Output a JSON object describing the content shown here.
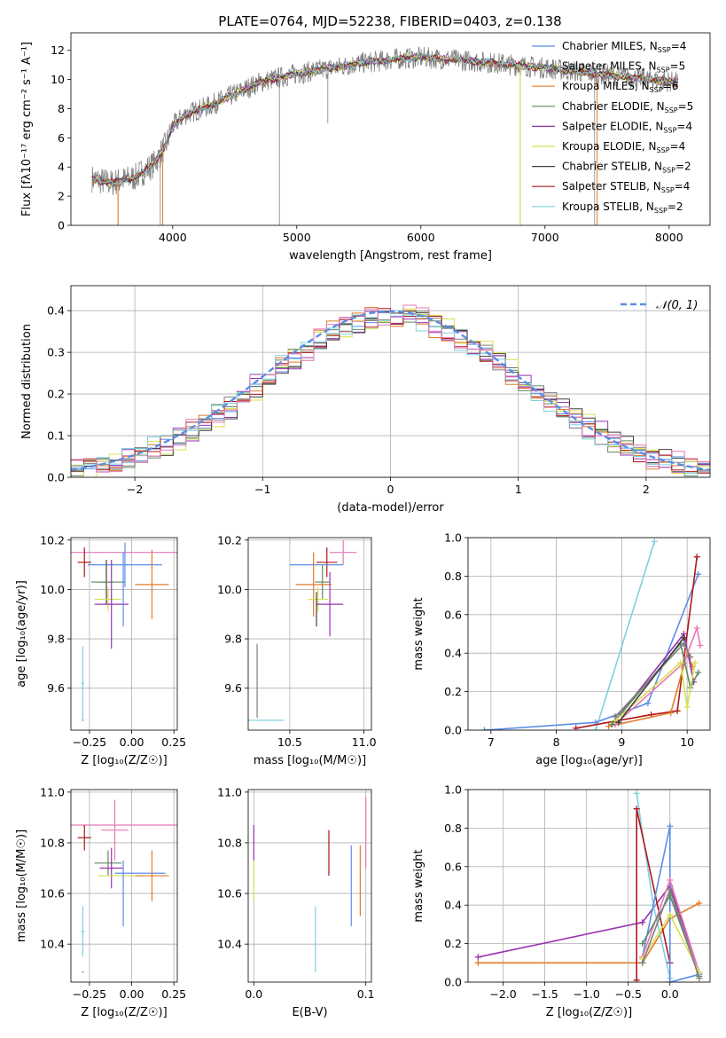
{
  "figure": {
    "title": "PLATE=0764, MJD=52238, FIBERID=0403, z=0.138"
  },
  "chart_data": [
    {
      "id": "spectrum",
      "type": "line",
      "xlabel": "wavelength [Angstrom, rest frame]",
      "ylabel": "Flux [fλ10⁻¹⁷ erg cm⁻² s⁻¹ A⁻¹]",
      "xlim": [
        3180,
        8330
      ],
      "ylim": [
        0,
        13.2
      ],
      "xticks": [
        4000,
        5000,
        6000,
        7000,
        8000
      ],
      "yticks": [
        0,
        2,
        4,
        6,
        8,
        10,
        12
      ],
      "grid": false,
      "legend_position": "right",
      "legend": [
        {
          "name": "Chabrier MILES, N",
          "sub": "SSP",
          "suffix": "=4",
          "color": "#5b8ee6"
        },
        {
          "name": "Salpeter MILES, N",
          "sub": "SSP",
          "suffix": "=5",
          "color": "#7f7f7f"
        },
        {
          "name": "Kroupa MILES, N",
          "sub": "SSP",
          "suffix": "=6",
          "color": "#e07b2a"
        },
        {
          "name": "Chabrier ELODIE, N",
          "sub": "SSP",
          "suffix": "=5",
          "color": "#5f8a5f"
        },
        {
          "name": "Salpeter ELODIE, N",
          "sub": "SSP",
          "suffix": "=4",
          "color": "#9a32b0"
        },
        {
          "name": "Kroupa ELODIE, N",
          "sub": "SSP",
          "suffix": "=4",
          "color": "#d6e050"
        },
        {
          "name": "Chabrier STELIB, N",
          "sub": "SSP",
          "suffix": "=2",
          "color": "#404040"
        },
        {
          "name": "Salpeter STELIB, N",
          "sub": "SSP",
          "suffix": "=4",
          "color": "#b01818"
        },
        {
          "name": "Kroupa STELIB, N",
          "sub": "SSP",
          "suffix": "=2",
          "color": "#7fd0e0"
        }
      ],
      "continuum": {
        "x": [
          3350,
          3500,
          3700,
          3850,
          3950,
          4000,
          4100,
          4300,
          4500,
          4700,
          5000,
          5300,
          5500,
          5800,
          6000,
          6200,
          6500,
          7000,
          7500,
          8070
        ],
        "y": [
          3.2,
          2.9,
          3.3,
          4.2,
          5.6,
          6.8,
          7.6,
          8.2,
          9.0,
          9.8,
          10.4,
          10.8,
          11.1,
          11.4,
          11.5,
          11.4,
          11.2,
          10.8,
          10.3,
          9.8
        ]
      },
      "data_noise": 0.75,
      "data_spikes": [
        {
          "x": 3560,
          "y": 0
        },
        {
          "x": 3900,
          "y": 0
        },
        {
          "x": 4860,
          "y": 0
        },
        {
          "x": 6800,
          "y": 0
        },
        {
          "x": 7400,
          "y": 0
        },
        {
          "x": 5250,
          "y": 7.0
        }
      ]
    },
    {
      "id": "residuals",
      "type": "histogram",
      "xlabel": "(data-model)/error",
      "ylabel": "Normed distribution",
      "xlim": [
        -2.5,
        2.5
      ],
      "ylim": [
        0,
        0.46
      ],
      "xticks": [
        -2,
        -1,
        0,
        1,
        2
      ],
      "yticks": [
        0.0,
        0.1,
        0.2,
        0.3,
        0.4
      ],
      "grid": true,
      "legend_position": "top-right",
      "legend_label": "𝒩(0, 1)",
      "gaussian_color": "#5b8ee6",
      "bin_width": 0.1,
      "series_colors": [
        "#5b8ee6",
        "#7f7f7f",
        "#e07b2a",
        "#5f8a5f",
        "#9a32b0",
        "#d6e050",
        "#404040",
        "#b01818",
        "#7fd0e0",
        "#e878b8"
      ],
      "series_noise": [
        0.01,
        0.014,
        0.016,
        0.015,
        0.018,
        0.017,
        0.014,
        0.016,
        0.015,
        0.02
      ],
      "series_shift": [
        0.1,
        0.05,
        -0.05,
        0.0,
        0.08,
        0.12,
        0.15,
        0.0,
        -0.05,
        0.05
      ]
    },
    {
      "id": "age-vs-Z",
      "type": "errorbar",
      "xlabel": "Z [log₁₀(Z/Z☉)]",
      "ylabel": "age  [log₁₀(age/yr)]",
      "xlim": [
        -0.36,
        0.27
      ],
      "ylim": [
        9.43,
        10.21
      ],
      "xticks": [
        -0.25,
        0.0,
        0.25
      ],
      "xtick_labels": [
        "−0.25",
        "0.00",
        "0.25"
      ],
      "yticks": [
        9.6,
        9.8,
        10.0,
        10.2
      ],
      "grid": true,
      "points": [
        {
          "x": -0.04,
          "xerr": 0.32,
          "y": 10.15,
          "yerr": 0.0,
          "color": "#e878b8"
        },
        {
          "x": -0.28,
          "xerr": 0.04,
          "y": 10.11,
          "yerr": 0.06,
          "color": "#b01818"
        },
        {
          "x": -0.04,
          "xerr": 0.22,
          "y": 10.1,
          "yerr": 0.09,
          "color": "#5b8ee6"
        },
        {
          "x": -0.15,
          "xerr": 0.05,
          "y": 10.03,
          "yerr": 0.09,
          "color": "#404040"
        },
        {
          "x": -0.14,
          "xerr": 0.1,
          "y": 10.03,
          "yerr": 0.0,
          "color": "#5f8a5f"
        },
        {
          "x": 0.12,
          "xerr": 0.1,
          "y": 10.02,
          "yerr": 0.14,
          "color": "#e07b2a"
        },
        {
          "x": -0.14,
          "xerr": 0.08,
          "y": 9.96,
          "yerr": 0.05,
          "color": "#d6e050"
        },
        {
          "x": -0.12,
          "xerr": 0.1,
          "y": 9.94,
          "yerr": 0.18,
          "color": "#9a32b0"
        },
        {
          "x": -0.05,
          "xerr": 0.0,
          "y": 10.0,
          "yerr": 0.15,
          "color": "#5b8ee6"
        },
        {
          "x": -0.29,
          "xerr": 0.01,
          "y": 9.62,
          "yerr": 0.15,
          "color": "#7fd0e0"
        },
        {
          "x": -0.29,
          "xerr": 0.005,
          "y": 9.47,
          "yerr": 0.0,
          "color": "#7f7f7f"
        }
      ]
    },
    {
      "id": "age-vs-mass",
      "type": "errorbar",
      "xlabel": "mass [log₁₀(M/M☉)]",
      "ylabel": "",
      "xlim": [
        10.22,
        11.05
      ],
      "ylim": [
        9.43,
        10.21
      ],
      "xticks": [
        10.5,
        11.0
      ],
      "xtick_labels": [
        "10.5",
        "11.0"
      ],
      "yticks": [
        9.6,
        9.8,
        10.0,
        10.2
      ],
      "grid": true,
      "points": [
        {
          "x": 10.86,
          "xerr": 0.09,
          "y": 10.15,
          "yerr": 0.05,
          "color": "#e878b8"
        },
        {
          "x": 10.75,
          "xerr": 0.07,
          "y": 10.11,
          "yerr": 0.06,
          "color": "#b01818"
        },
        {
          "x": 10.68,
          "xerr": 0.18,
          "y": 10.1,
          "yerr": 0.0,
          "color": "#5b8ee6"
        },
        {
          "x": 10.72,
          "xerr": 0.05,
          "y": 10.03,
          "yerr": 0.07,
          "color": "#5f8a5f"
        },
        {
          "x": 10.66,
          "xerr": 0.12,
          "y": 10.02,
          "yerr": 0.13,
          "color": "#e07b2a"
        },
        {
          "x": 10.69,
          "xerr": 0.07,
          "y": 9.96,
          "yerr": 0.05,
          "color": "#d6e050"
        },
        {
          "x": 10.77,
          "xerr": 0.09,
          "y": 9.94,
          "yerr": 0.13,
          "color": "#9a32b0"
        },
        {
          "x": 10.68,
          "xerr": 0.0,
          "y": 9.92,
          "yerr": 0.07,
          "color": "#404040"
        },
        {
          "x": 10.28,
          "xerr": 0.0,
          "y": 9.63,
          "yerr": 0.15,
          "color": "#7f7f7f"
        },
        {
          "x": 10.28,
          "xerr": 0.18,
          "y": 9.47,
          "yerr": 0.0,
          "color": "#7fd0e0"
        }
      ]
    },
    {
      "id": "massweight-vs-age",
      "type": "line",
      "xlabel": "age  [log₁₀(age/yr)]",
      "ylabel": "mass weight",
      "xlim": [
        6.65,
        10.35
      ],
      "ylim": [
        0,
        1.0
      ],
      "xticks": [
        7,
        8,
        9,
        10
      ],
      "yticks": [
        0.0,
        0.2,
        0.4,
        0.6,
        0.8,
        1.0
      ],
      "grid": true,
      "series": [
        {
          "color": "#7fd0e0",
          "x": [
            8.6,
            9.5
          ],
          "y": [
            0.0,
            0.98
          ]
        },
        {
          "color": "#5b8ee6",
          "x": [
            6.9,
            8.6,
            9.4,
            10.17
          ],
          "y": [
            0.0,
            0.04,
            0.14,
            0.81
          ]
        },
        {
          "color": "#b01818",
          "x": [
            8.3,
            9.45,
            9.85,
            10.15
          ],
          "y": [
            0.01,
            0.08,
            0.1,
            0.9
          ]
        },
        {
          "color": "#e07b2a",
          "x": [
            8.8,
            9.75,
            10.0,
            10.08
          ],
          "y": [
            0.02,
            0.09,
            0.4,
            0.33
          ]
        },
        {
          "color": "#9a32b0",
          "x": [
            8.9,
            9.95,
            10.1
          ],
          "y": [
            0.05,
            0.5,
            0.25
          ]
        },
        {
          "color": "#e878b8",
          "x": [
            8.9,
            9.95,
            10.15,
            10.2
          ],
          "y": [
            0.03,
            0.35,
            0.53,
            0.44
          ]
        },
        {
          "color": "#5f8a5f",
          "x": [
            8.85,
            9.9,
            10.05,
            10.17
          ],
          "y": [
            0.03,
            0.45,
            0.22,
            0.3
          ]
        },
        {
          "color": "#d6e050",
          "x": [
            8.9,
            9.9,
            10.0,
            10.12
          ],
          "y": [
            0.05,
            0.35,
            0.12,
            0.35
          ]
        },
        {
          "color": "#7f7f7f",
          "x": [
            8.9,
            9.95,
            10.05
          ],
          "y": [
            0.07,
            0.45,
            0.38
          ]
        },
        {
          "color": "#404040",
          "x": [
            8.95,
            9.95
          ],
          "y": [
            0.04,
            0.48
          ]
        }
      ]
    },
    {
      "id": "mass-vs-Z",
      "type": "errorbar",
      "xlabel": "Z [log₁₀(Z/Z☉)]",
      "ylabel": "mass [log₁₀(M/M☉)]",
      "xlim": [
        -0.36,
        0.27
      ],
      "ylim": [
        10.25,
        11.01
      ],
      "xticks": [
        -0.25,
        0.0,
        0.25
      ],
      "xtick_labels": [
        "−0.25",
        "0.00",
        "0.25"
      ],
      "yticks": [
        10.4,
        10.6,
        10.8,
        11.0
      ],
      "grid": true,
      "points": [
        {
          "x": -0.04,
          "xerr": 0.32,
          "y": 10.87,
          "yerr": 0.0,
          "color": "#e878b8"
        },
        {
          "x": -0.28,
          "xerr": 0.04,
          "y": 10.82,
          "yerr": 0.05,
          "color": "#b01818"
        },
        {
          "x": -0.1,
          "xerr": 0.08,
          "y": 10.85,
          "yerr": 0.12,
          "color": "#e878b8"
        },
        {
          "x": -0.14,
          "xerr": 0.08,
          "y": 10.72,
          "yerr": 0.05,
          "color": "#5f8a5f"
        },
        {
          "x": -0.12,
          "xerr": 0.07,
          "y": 10.7,
          "yerr": 0.08,
          "color": "#9a32b0"
        },
        {
          "x": 0.05,
          "xerr": 0.15,
          "y": 10.68,
          "yerr": 0.0,
          "color": "#5b8ee6"
        },
        {
          "x": -0.05,
          "xerr": 0.15,
          "y": 10.67,
          "yerr": 0.0,
          "color": "#d6e050"
        },
        {
          "x": 0.12,
          "xerr": 0.1,
          "y": 10.67,
          "yerr": 0.1,
          "color": "#e07b2a"
        },
        {
          "x": -0.05,
          "xerr": 0.0,
          "y": 10.6,
          "yerr": 0.13,
          "color": "#5b8ee6"
        },
        {
          "x": -0.29,
          "xerr": 0.01,
          "y": 10.45,
          "yerr": 0.1,
          "color": "#7fd0e0"
        },
        {
          "x": -0.29,
          "xerr": 0.005,
          "y": 10.29,
          "yerr": 0.0,
          "color": "#7f7f7f"
        }
      ]
    },
    {
      "id": "mass-vs-EBV",
      "type": "errorbar",
      "xlabel": "E(B-V)",
      "ylabel": "",
      "xlim": [
        -0.005,
        0.105
      ],
      "ylim": [
        10.25,
        11.01
      ],
      "xticks": [
        0.0,
        0.1
      ],
      "xtick_labels": [
        "0.0",
        "0.1"
      ],
      "yticks": [
        10.4,
        10.6,
        10.8,
        11.0
      ],
      "grid": true,
      "points": [
        {
          "x": 0.0,
          "xerr": 0.0,
          "y": 10.8,
          "yerr": 0.07,
          "color": "#9a32b0"
        },
        {
          "x": 0.0,
          "xerr": 0.0,
          "y": 10.65,
          "yerr": 0.08,
          "color": "#d6e050"
        },
        {
          "x": 0.055,
          "xerr": 0.0,
          "y": 10.42,
          "yerr": 0.13,
          "color": "#7fd0e0"
        },
        {
          "x": 0.067,
          "xerr": 0.0,
          "y": 10.76,
          "yerr": 0.09,
          "color": "#b01818"
        },
        {
          "x": 0.087,
          "xerr": 0.0,
          "y": 10.63,
          "yerr": 0.16,
          "color": "#5b8ee6"
        },
        {
          "x": 0.095,
          "xerr": 0.0,
          "y": 10.65,
          "yerr": 0.14,
          "color": "#e07b2a"
        },
        {
          "x": 0.1,
          "xerr": 0.0,
          "y": 10.84,
          "yerr": 0.14,
          "color": "#e878b8"
        }
      ]
    },
    {
      "id": "massweight-vs-Z",
      "type": "line",
      "xlabel": "Z [log₁₀(Z/Z☉)]",
      "ylabel": "mass weight",
      "xlim": [
        -2.42,
        0.48
      ],
      "ylim": [
        0,
        1.0
      ],
      "xticks": [
        -2.0,
        -1.5,
        -1.0,
        -0.5,
        0.0
      ],
      "xtick_labels": [
        "−2.0",
        "−1.5",
        "−1.0",
        "−0.5",
        "0.0"
      ],
      "yticks": [
        0.0,
        0.2,
        0.4,
        0.6,
        0.8,
        1.0
      ],
      "grid": true,
      "series": [
        {
          "color": "#9a32b0",
          "x": [
            -2.3,
            -0.33,
            0.0,
            0.35
          ],
          "y": [
            0.13,
            0.31,
            0.5,
            0.05
          ]
        },
        {
          "color": "#e07b2a",
          "x": [
            -2.3,
            -0.33,
            0.0,
            0.35
          ],
          "y": [
            0.1,
            0.1,
            0.33,
            0.41
          ]
        },
        {
          "color": "#7fd0e0",
          "x": [
            -0.4,
            -0.2,
            0.0
          ],
          "y": [
            0.98,
            0.4,
            0.02
          ]
        },
        {
          "color": "#b01818",
          "x": [
            -0.4,
            -0.4,
            0.0
          ],
          "y": [
            0.01,
            0.9,
            0.1
          ]
        },
        {
          "color": "#5b8ee6",
          "x": [
            -0.33,
            0.0,
            0.0,
            0.35
          ],
          "y": [
            0.13,
            0.81,
            0.0,
            0.04
          ]
        },
        {
          "color": "#e878b8",
          "x": [
            -0.33,
            0.0,
            0.35
          ],
          "y": [
            0.13,
            0.53,
            0.05
          ]
        },
        {
          "color": "#5f8a5f",
          "x": [
            -0.33,
            0.0,
            0.35
          ],
          "y": [
            0.2,
            0.45,
            0.03
          ]
        },
        {
          "color": "#d6e050",
          "x": [
            -0.33,
            0.0,
            0.35
          ],
          "y": [
            0.12,
            0.35,
            0.05
          ]
        },
        {
          "color": "#7f7f7f",
          "x": [
            -0.33,
            0.0,
            0.35
          ],
          "y": [
            0.1,
            0.48,
            0.02
          ]
        }
      ]
    }
  ]
}
